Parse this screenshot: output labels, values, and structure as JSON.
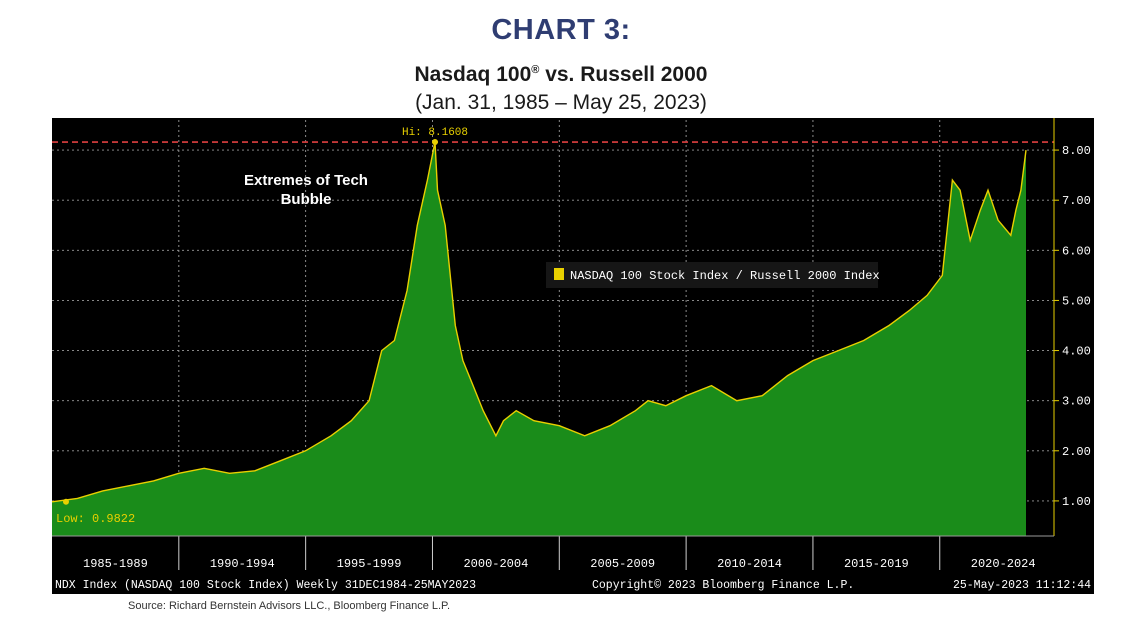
{
  "header": {
    "label": "CHART 3:",
    "title_main": "Nasdaq 100",
    "title_mark": "®",
    "title_rest": " vs. Russell 2000",
    "subtitle": "(Jan. 31, 1985 – May 25, 2023)"
  },
  "source": "Source:  Richard Bernstein Advisors LLC., Bloomberg Finance L.P.",
  "footer": {
    "left": "NDX Index (NASDAQ 100 Stock Index)  Weekly 31DEC1984-25MAY2023",
    "center": "Copyright© 2023 Bloomberg Finance L.P.",
    "right": "25-May-2023 11:12:44"
  },
  "colors": {
    "background": "#000000",
    "area_fill": "#1a8c1a",
    "line": "#e8d000",
    "hi_line": "#e04040",
    "text": "#ffffff"
  },
  "chart_data": {
    "type": "area",
    "series": [
      {
        "name": "NASDAQ 100 Stock Index / Russell 2000 Index",
        "x": [
          1985.0,
          1986.0,
          1987.0,
          1988.0,
          1989.0,
          1990.0,
          1991.0,
          1992.0,
          1993.0,
          1994.0,
          1995.0,
          1996.0,
          1996.8,
          1997.5,
          1998.0,
          1998.5,
          1999.0,
          1999.4,
          1999.8,
          2000.1,
          2000.2,
          2000.5,
          2000.9,
          2001.2,
          2001.6,
          2002.0,
          2002.5,
          2002.8,
          2003.3,
          2004.0,
          2005.0,
          2006.0,
          2007.0,
          2008.0,
          2008.5,
          2009.2,
          2010.0,
          2011.0,
          2012.0,
          2013.0,
          2014.0,
          2015.0,
          2016.0,
          2017.0,
          2018.0,
          2018.8,
          2019.5,
          2020.1,
          2020.5,
          2020.8,
          2021.2,
          2021.6,
          2021.9,
          2022.3,
          2022.8,
          2023.0,
          2023.2,
          2023.4
        ],
        "y": [
          0.9822,
          1.05,
          1.2,
          1.3,
          1.4,
          1.55,
          1.65,
          1.55,
          1.6,
          1.8,
          2.0,
          2.3,
          2.6,
          3.0,
          4.0,
          4.2,
          5.2,
          6.5,
          7.4,
          8.1608,
          7.2,
          6.5,
          4.5,
          3.8,
          3.3,
          2.8,
          2.3,
          2.6,
          2.8,
          2.6,
          2.5,
          2.3,
          2.5,
          2.8,
          3.0,
          2.9,
          3.1,
          3.3,
          3.0,
          3.1,
          3.5,
          3.8,
          4.0,
          4.2,
          4.5,
          4.8,
          5.1,
          5.5,
          7.4,
          7.2,
          6.2,
          6.8,
          7.2,
          6.6,
          6.3,
          6.8,
          7.2,
          8.0
        ]
      }
    ],
    "x_tick_labels": [
      "1985-1989",
      "1990-1994",
      "1995-1999",
      "2000-2004",
      "2005-2009",
      "2010-2014",
      "2015-2019",
      "2020-2024"
    ],
    "y_tick_labels": [
      "1.00",
      "2.00",
      "3.00",
      "4.00",
      "5.00",
      "6.00",
      "7.00",
      "8.00"
    ],
    "y_ticks": [
      1,
      2,
      3,
      4,
      5,
      6,
      7,
      8
    ],
    "xlim": [
      1985.0,
      2023.4
    ],
    "ylim": [
      0.3,
      8.6
    ],
    "hi_value": 8.1608,
    "hi_label": "Hi: 8.1608",
    "low_value": 0.9822,
    "low_label": "Low: 0.9822",
    "annotation": [
      "Extremes of Tech",
      "Bubble"
    ],
    "legend": "NASDAQ 100 Stock Index / Russell 2000 Index",
    "legend_position": "center-right",
    "grid": true
  }
}
